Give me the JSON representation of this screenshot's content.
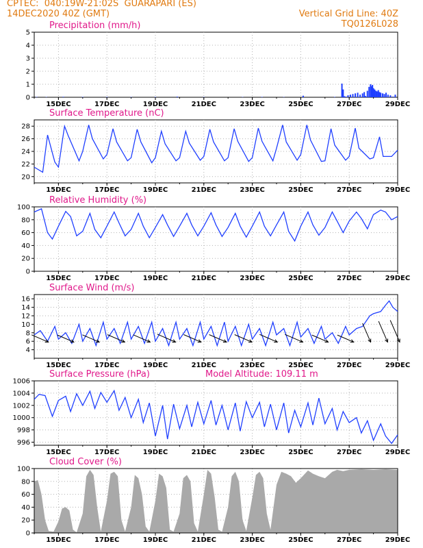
{
  "header": {
    "line1_left": "CPTEC:  040:19W-21:02S  GUARAPARI (ES)",
    "line2_left": "14DEC2020 40Z (GMT)",
    "line1_right": "Vertical Grid Line: 40Z",
    "line2_right": "TQ0126L028"
  },
  "colors": {
    "header": "#e07a10",
    "panel_title": "#e0188a",
    "series": "#1f3fff",
    "cloud": "#a9a9a9",
    "grid": "#b0b0b0"
  },
  "x_axis": {
    "ticks": [
      "15DEC",
      "17DEC",
      "19DEC",
      "21DEC",
      "23DEC",
      "25DEC",
      "27DEC",
      "29DEC"
    ],
    "tick_days": [
      15,
      17,
      19,
      21,
      23,
      25,
      27,
      29
    ],
    "range_days": [
      14,
      29
    ]
  },
  "chart_data": [
    {
      "id": "precip",
      "type": "bar",
      "title": "Precipitation (mm/h)",
      "ylim": [
        0,
        5
      ],
      "yticks": [
        0,
        1,
        2,
        3,
        4,
        5
      ],
      "day": [
        14.1,
        14.5,
        15.2,
        16.0,
        17.0,
        18.0,
        19.0,
        19.9,
        21.0,
        22.6,
        23.4,
        24.3,
        25.1,
        26.4,
        26.7,
        26.75,
        26.8,
        26.85,
        26.95,
        27.05,
        27.15,
        27.25,
        27.35,
        27.45,
        27.55,
        27.62,
        27.67,
        27.75,
        27.82,
        27.88,
        27.92,
        27.96,
        28.0,
        28.05,
        28.1,
        28.15,
        28.2,
        28.25,
        28.3,
        28.38,
        28.45,
        28.52,
        28.6,
        28.7,
        28.8,
        28.9
      ],
      "values": [
        0.03,
        0.02,
        0.04,
        0.03,
        0.03,
        0.02,
        0.03,
        0.05,
        0.02,
        0.02,
        0.03,
        0.02,
        0.12,
        0.03,
        1.05,
        0.6,
        0.08,
        0.05,
        0.15,
        0.2,
        0.25,
        0.3,
        0.35,
        0.2,
        0.3,
        0.4,
        0.1,
        0.5,
        0.8,
        1.0,
        0.85,
        0.95,
        0.7,
        0.6,
        0.5,
        0.45,
        0.55,
        0.4,
        0.35,
        0.3,
        0.25,
        0.35,
        0.2,
        0.15,
        0.05,
        0.2
      ]
    },
    {
      "id": "temp",
      "type": "line",
      "title": "Surface Temperature (nC)",
      "ylim": [
        19,
        29
      ],
      "yticks": [
        20,
        22,
        24,
        26,
        28
      ],
      "x": [
        14.0,
        14.35,
        14.55,
        14.85,
        15.0,
        15.25,
        15.4,
        15.85,
        16.0,
        16.25,
        16.4,
        16.85,
        17.0,
        17.25,
        17.4,
        17.85,
        18.0,
        18.25,
        18.4,
        18.85,
        19.0,
        19.25,
        19.4,
        19.85,
        20.0,
        20.25,
        20.4,
        20.85,
        21.0,
        21.25,
        21.4,
        21.85,
        22.0,
        22.25,
        22.4,
        22.85,
        23.0,
        23.25,
        23.4,
        23.85,
        24.0,
        24.25,
        24.4,
        24.85,
        25.0,
        25.25,
        25.4,
        25.85,
        26.0,
        26.25,
        26.4,
        26.85,
        27.0,
        27.25,
        27.4,
        27.85,
        28.0,
        28.25,
        28.4,
        28.75,
        29.0
      ],
      "y": [
        21.5,
        20.7,
        26.6,
        22.3,
        21.5,
        28.0,
        26.5,
        22.5,
        24.0,
        28.2,
        26.0,
        22.8,
        23.5,
        27.6,
        25.5,
        22.5,
        23.0,
        27.5,
        25.5,
        22.2,
        23.0,
        27.2,
        25.2,
        22.5,
        23.0,
        27.2,
        25.3,
        22.6,
        23.2,
        27.5,
        25.5,
        22.5,
        23.0,
        27.6,
        25.6,
        22.4,
        23.0,
        27.7,
        25.6,
        22.5,
        24.5,
        28.2,
        25.5,
        22.6,
        23.5,
        28.2,
        25.8,
        22.4,
        22.5,
        27.6,
        25.0,
        22.6,
        23.2,
        27.7,
        24.5,
        22.8,
        23.0,
        26.3,
        23.2,
        23.2,
        24.2
      ]
    },
    {
      "id": "rh",
      "type": "line",
      "title": "Relative Humidity (%)",
      "ylim": [
        0,
        100
      ],
      "yticks": [
        0,
        20,
        40,
        60,
        80,
        100
      ],
      "x": [
        14.0,
        14.3,
        14.55,
        14.75,
        15.0,
        15.3,
        15.5,
        15.75,
        16.0,
        16.3,
        16.5,
        16.75,
        17.0,
        17.3,
        17.5,
        17.75,
        18.0,
        18.3,
        18.5,
        18.75,
        19.0,
        19.3,
        19.5,
        19.75,
        20.0,
        20.3,
        20.5,
        20.75,
        21.0,
        21.3,
        21.5,
        21.75,
        22.0,
        22.3,
        22.5,
        22.75,
        23.0,
        23.3,
        23.5,
        23.75,
        24.0,
        24.3,
        24.5,
        24.75,
        25.0,
        25.3,
        25.5,
        25.75,
        26.0,
        26.3,
        26.5,
        26.75,
        27.0,
        27.3,
        27.5,
        27.75,
        28.0,
        28.3,
        28.5,
        28.75,
        29.0
      ],
      "y": [
        92,
        97,
        60,
        50,
        70,
        93,
        85,
        55,
        62,
        90,
        65,
        52,
        70,
        92,
        75,
        55,
        65,
        90,
        70,
        52,
        68,
        88,
        72,
        54,
        70,
        90,
        72,
        55,
        70,
        91,
        72,
        54,
        68,
        90,
        70,
        53,
        70,
        92,
        70,
        55,
        72,
        92,
        62,
        47,
        70,
        92,
        72,
        56,
        68,
        92,
        78,
        60,
        78,
        92,
        82,
        66,
        88,
        95,
        92,
        80,
        85
      ]
    },
    {
      "id": "wind",
      "type": "line",
      "title": "Surface Wind (m/s)",
      "ylim": [
        2,
        17
      ],
      "yticks": [
        4,
        6,
        8,
        10,
        12,
        14,
        16
      ],
      "x": [
        14.0,
        14.25,
        14.55,
        14.85,
        15.0,
        15.3,
        15.55,
        15.85,
        16.0,
        16.3,
        16.55,
        16.85,
        17.0,
        17.3,
        17.55,
        17.85,
        18.0,
        18.3,
        18.55,
        18.85,
        19.0,
        19.3,
        19.55,
        19.85,
        20.0,
        20.3,
        20.55,
        20.85,
        21.0,
        21.3,
        21.55,
        21.85,
        22.0,
        22.3,
        22.55,
        22.85,
        23.0,
        23.3,
        23.55,
        23.85,
        24.0,
        24.3,
        24.55,
        24.85,
        25.0,
        25.3,
        25.55,
        25.85,
        26.0,
        26.3,
        26.55,
        26.85,
        27.0,
        27.3,
        27.55,
        27.85,
        28.0,
        28.3,
        28.5,
        28.65,
        28.8,
        29.0
      ],
      "y": [
        7.5,
        8.5,
        6.0,
        9.5,
        6.5,
        8.0,
        5.5,
        10.0,
        6.0,
        9.0,
        5.0,
        10.5,
        6.5,
        9.0,
        5.5,
        10.5,
        6.5,
        9.5,
        5.5,
        10.5,
        6.0,
        9.0,
        5.0,
        10.5,
        6.5,
        9.0,
        5.0,
        10.5,
        6.5,
        9.5,
        5.0,
        10.5,
        6.0,
        9.5,
        5.0,
        10.0,
        6.5,
        9.0,
        5.0,
        10.5,
        7.5,
        9.0,
        5.0,
        10.5,
        7.0,
        9.0,
        5.5,
        9.5,
        6.5,
        8.0,
        5.5,
        9.5,
        7.5,
        9.0,
        9.5,
        12.0,
        12.5,
        13.0,
        14.5,
        15.5,
        14.0,
        13.0
      ],
      "arrows_day": [
        14.5,
        15.55,
        16.6,
        17.65,
        18.7,
        19.75,
        20.8,
        21.85,
        22.9,
        23.95,
        25.0,
        26.05,
        27.1,
        27.8,
        28.5,
        29.0
      ],
      "arrows_speed": [
        8,
        7.5,
        8,
        8.5,
        8,
        9.5,
        8.5,
        8.5,
        8.5,
        9,
        9,
        7.5,
        7.5,
        10,
        12,
        13
      ]
    },
    {
      "id": "pressure",
      "type": "line",
      "title": "Surface Pressure (hPa)",
      "annotation": "Model Altitude: 109.11 m",
      "ylim": [
        995.5,
        1006
      ],
      "yticks": [
        996,
        998,
        1000,
        1002,
        1004,
        1006
      ],
      "x": [
        14.0,
        14.2,
        14.45,
        14.75,
        15.0,
        15.3,
        15.5,
        15.75,
        16.0,
        16.3,
        16.5,
        16.75,
        17.0,
        17.3,
        17.5,
        17.75,
        18.0,
        18.3,
        18.5,
        18.75,
        19.0,
        19.3,
        19.5,
        19.75,
        20.0,
        20.3,
        20.5,
        20.75,
        21.0,
        21.3,
        21.5,
        21.75,
        22.0,
        22.3,
        22.5,
        22.75,
        23.0,
        23.3,
        23.5,
        23.75,
        24.0,
        24.3,
        24.5,
        24.75,
        25.0,
        25.3,
        25.5,
        25.75,
        26.0,
        26.3,
        26.5,
        26.75,
        27.0,
        27.3,
        27.5,
        27.75,
        28.0,
        28.3,
        28.5,
        28.75,
        29.0
      ],
      "y": [
        1003.0,
        1003.8,
        1003.6,
        1000.2,
        1002.8,
        1003.5,
        1001.0,
        1003.9,
        1002.0,
        1004.3,
        1001.5,
        1004.1,
        1002.5,
        1004.4,
        1001.2,
        1003.3,
        1000.0,
        1003.0,
        999.2,
        1002.4,
        997.0,
        1002.0,
        996.5,
        1002.2,
        998.2,
        1002.0,
        998.5,
        1002.5,
        999.0,
        1002.8,
        998.8,
        1002.0,
        998.0,
        1002.4,
        997.8,
        1002.6,
        1000.0,
        1002.5,
        998.5,
        1002.2,
        998.0,
        1002.4,
        997.5,
        1001.2,
        998.5,
        1002.4,
        998.8,
        1003.2,
        999.0,
        1001.5,
        998.0,
        1001.0,
        999.2,
        1000.0,
        997.5,
        999.5,
        996.3,
        999.0,
        997.0,
        995.8,
        997.2
      ]
    },
    {
      "id": "cloud",
      "type": "area",
      "title": "Cloud Cover (%)",
      "ylim": [
        0,
        100
      ],
      "yticks": [
        0,
        20,
        40,
        60,
        80,
        100
      ],
      "x": [
        14.0,
        14.15,
        14.3,
        14.45,
        14.6,
        14.8,
        15.0,
        15.15,
        15.3,
        15.45,
        15.6,
        15.75,
        16.0,
        16.15,
        16.3,
        16.45,
        16.6,
        16.75,
        17.0,
        17.15,
        17.3,
        17.45,
        17.6,
        17.75,
        18.0,
        18.15,
        18.3,
        18.45,
        18.6,
        18.75,
        19.0,
        19.15,
        19.3,
        19.45,
        19.6,
        19.75,
        20.0,
        20.15,
        20.3,
        20.45,
        20.6,
        20.75,
        21.0,
        21.15,
        21.3,
        21.45,
        21.6,
        21.75,
        22.0,
        22.15,
        22.3,
        22.45,
        22.6,
        22.75,
        23.0,
        23.15,
        23.3,
        23.45,
        23.6,
        23.75,
        24.0,
        24.2,
        24.4,
        24.6,
        24.8,
        25.0,
        25.3,
        25.5,
        25.75,
        26.0,
        26.3,
        26.5,
        26.75,
        27.0,
        27.5,
        28.0,
        28.5,
        29.0
      ],
      "y": [
        80,
        82,
        60,
        20,
        3,
        2,
        18,
        38,
        40,
        35,
        5,
        1,
        30,
        88,
        98,
        90,
        40,
        2,
        50,
        92,
        95,
        88,
        20,
        2,
        40,
        90,
        85,
        60,
        10,
        2,
        50,
        92,
        88,
        70,
        5,
        2,
        30,
        85,
        90,
        80,
        15,
        2,
        60,
        98,
        92,
        55,
        5,
        2,
        40,
        88,
        95,
        80,
        20,
        3,
        55,
        90,
        95,
        85,
        30,
        5,
        75,
        95,
        92,
        88,
        78,
        85,
        97,
        92,
        88,
        85,
        95,
        98,
        96,
        98,
        99,
        98,
        99,
        98
      ]
    }
  ]
}
